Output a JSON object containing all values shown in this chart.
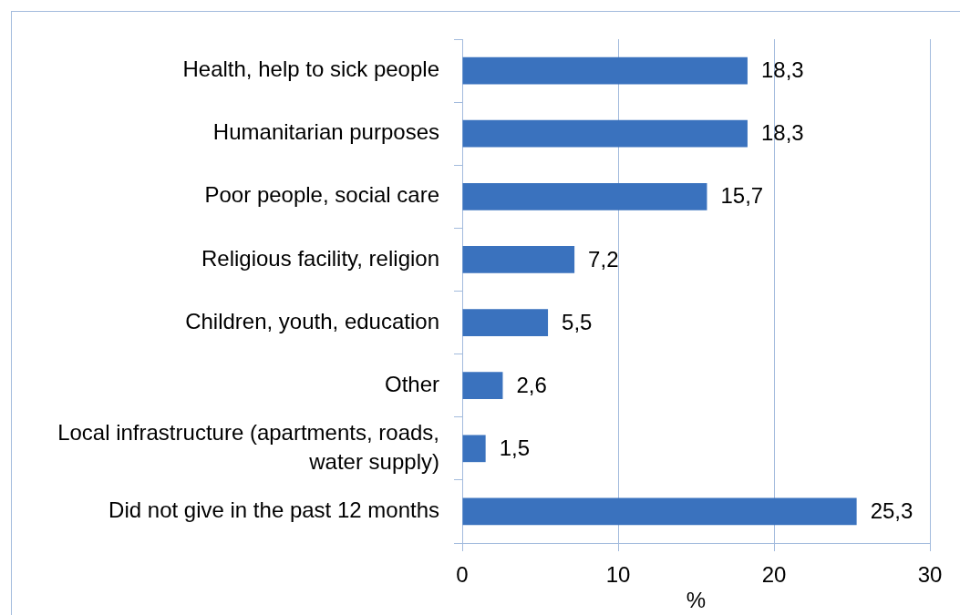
{
  "chart_data": {
    "type": "bar",
    "orientation": "horizontal",
    "categories": [
      "Health, help to sick people",
      "Humanitarian purposes",
      "Poor people, social care",
      "Religious facility, religion",
      "Children, youth, education",
      "Other",
      "Local infrastructure (apartments, roads, water supply)",
      "Did not give in the past 12 months"
    ],
    "values": [
      18.3,
      18.3,
      15.7,
      7.2,
      5.5,
      2.6,
      1.5,
      25.3
    ],
    "value_labels": [
      "18,3",
      "18,3",
      "15,7",
      "7,2",
      "5,5",
      "2,6",
      "1,5",
      "25,3"
    ],
    "color": "#3a72be",
    "xlim": [
      0,
      30
    ],
    "xticks": [
      0,
      10,
      20,
      30
    ],
    "xlabel": "%",
    "grid": "x"
  }
}
